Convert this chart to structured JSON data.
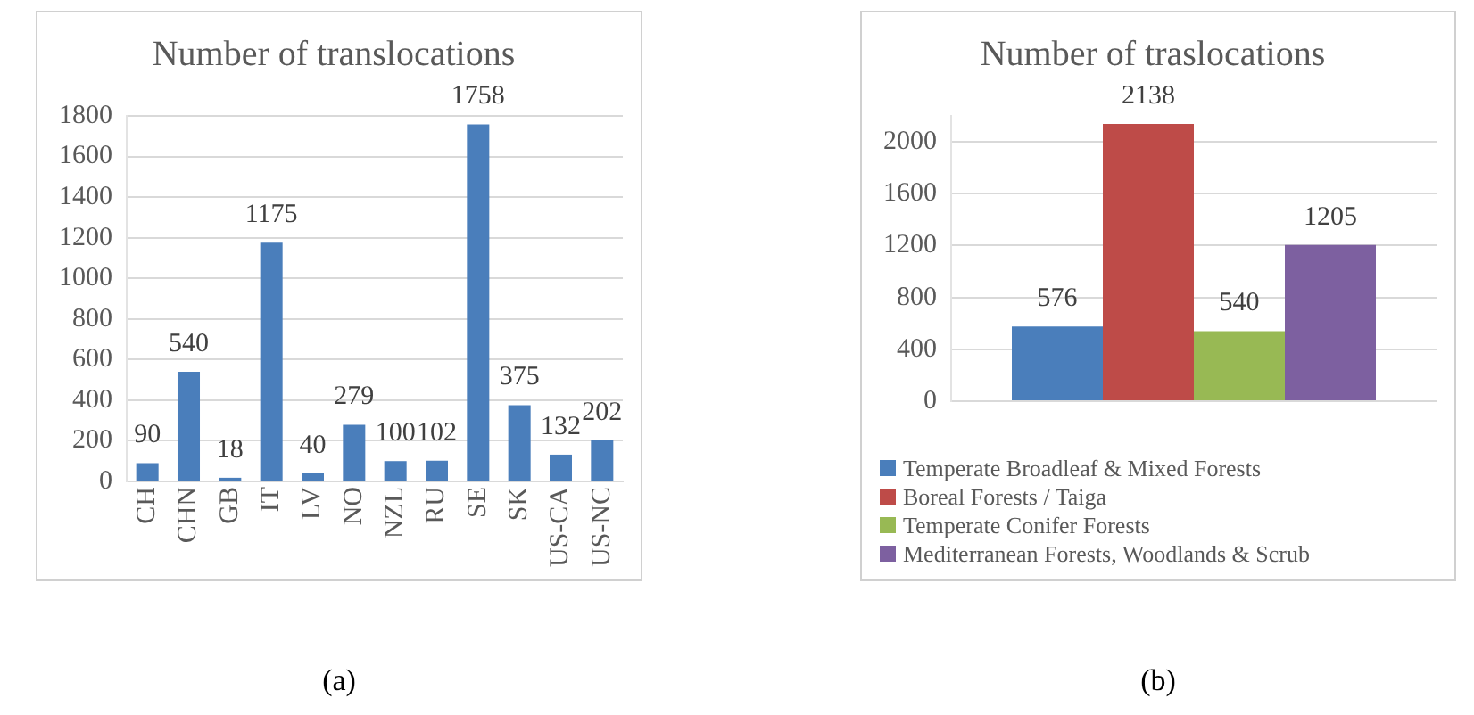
{
  "chart_data": [
    {
      "type": "bar",
      "title": "Number of translocations",
      "categories": [
        "CH",
        "CHN",
        "GB",
        "IT",
        "LV",
        "NO",
        "NZL",
        "RU",
        "SE",
        "SK",
        "US-CA",
        "US-NC"
      ],
      "values": [
        90,
        540,
        18,
        1175,
        40,
        279,
        100,
        102,
        1758,
        375,
        132,
        202
      ],
      "color": "#4a7ebb",
      "ylim": [
        0,
        1800
      ],
      "yticks": [
        0,
        200,
        400,
        600,
        800,
        1000,
        1200,
        1400,
        1600,
        1800
      ],
      "grid": "y",
      "legend": false,
      "data_labels": true,
      "annotations": [
        "(a)"
      ]
    },
    {
      "type": "bar",
      "title": "Number of traslocations",
      "categories": [
        null
      ],
      "series": [
        {
          "name": "Temperate Broadleaf & Mixed Forests",
          "color": "#4a7ebb",
          "values": [
            576
          ]
        },
        {
          "name": "Boreal Forests / Taiga",
          "color": "#be4b48",
          "values": [
            2138
          ]
        },
        {
          "name": "Temperate Conifer Forests",
          "color": "#98b954",
          "values": [
            540
          ]
        },
        {
          "name": "Mediterranean Forests, Woodlands & Scrub",
          "color": "#7d60a0",
          "values": [
            1205
          ]
        }
      ],
      "ylim": [
        0,
        2200
      ],
      "yticks": [
        0,
        400,
        800,
        1200,
        1600,
        2000
      ],
      "grid": "y",
      "legend": "bottom",
      "data_labels": true,
      "annotations": [
        "(b)"
      ]
    }
  ]
}
